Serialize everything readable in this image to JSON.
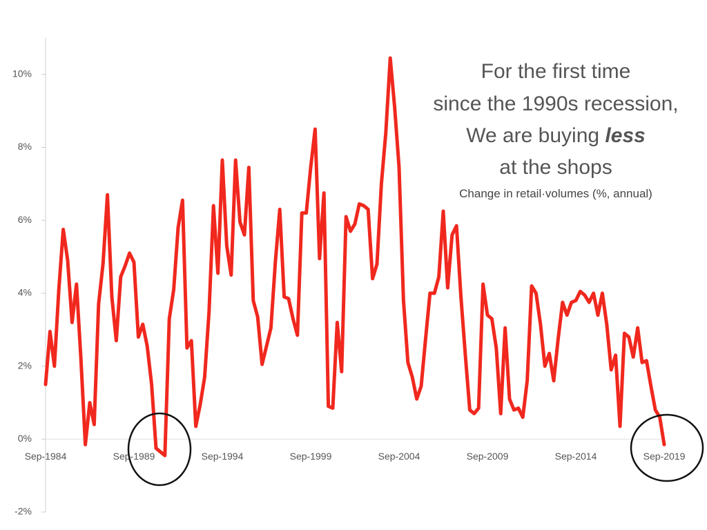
{
  "chart_data": {
    "type": "line",
    "annotation": [
      "For the first time",
      "since the 1990s recession,",
      "We are buying ",
      "less",
      "at the shops"
    ],
    "subtitle": "Change in retail·volumes (%, annual)",
    "categories": [
      "Sep-1984",
      null,
      null,
      null,
      null,
      null,
      null,
      null,
      null,
      null,
      null,
      null,
      null,
      null,
      null,
      null,
      null,
      null,
      null,
      null,
      "Sep-1989",
      null,
      null,
      null,
      null,
      null,
      null,
      null,
      null,
      null,
      null,
      null,
      null,
      null,
      null,
      null,
      null,
      null,
      null,
      null,
      "Sep-1994",
      null,
      null,
      null,
      null,
      null,
      null,
      null,
      null,
      null,
      null,
      null,
      null,
      null,
      null,
      null,
      null,
      null,
      null,
      null,
      "Sep-1999",
      null,
      null,
      null,
      null,
      null,
      null,
      null,
      null,
      null,
      null,
      null,
      null,
      null,
      null,
      null,
      null,
      null,
      null,
      null,
      "Sep-2004",
      null,
      null,
      null,
      null,
      null,
      null,
      null,
      null,
      null,
      null,
      null,
      null,
      null,
      null,
      null,
      null,
      null,
      null,
      null,
      "Sep-2009",
      null,
      null,
      null,
      null,
      null,
      null,
      null,
      null,
      null,
      null,
      null,
      null,
      null,
      null,
      null,
      null,
      null,
      null,
      null,
      "Sep-2014",
      null,
      null,
      null,
      null,
      null,
      null,
      null,
      null,
      null,
      null,
      null,
      null,
      null,
      null,
      null,
      null,
      null,
      null,
      null,
      "Sep-2019"
    ],
    "values": [
      1.5,
      2.95,
      2.0,
      4.1,
      5.75,
      4.9,
      3.2,
      4.25,
      2.2,
      -0.15,
      1.0,
      0.4,
      3.7,
      4.8,
      6.7,
      3.9,
      2.7,
      4.45,
      4.75,
      5.1,
      4.85,
      2.8,
      3.15,
      2.55,
      1.5,
      -0.25,
      -0.35,
      -0.45,
      3.3,
      4.1,
      5.8,
      6.55,
      2.5,
      2.7,
      0.35,
      0.95,
      1.7,
      3.5,
      6.4,
      4.55,
      7.65,
      5.3,
      4.5,
      7.65,
      5.95,
      5.6,
      7.45,
      3.8,
      3.35,
      2.05,
      2.55,
      3.05,
      4.85,
      6.3,
      3.9,
      3.85,
      3.3,
      2.85,
      6.2,
      6.2,
      7.45,
      8.5,
      4.95,
      6.75,
      0.9,
      0.85,
      3.2,
      1.85,
      6.1,
      5.7,
      5.9,
      6.45,
      6.4,
      6.3,
      4.4,
      4.8,
      7.0,
      8.4,
      10.45,
      9.1,
      7.45,
      3.8,
      2.1,
      1.7,
      1.1,
      1.45,
      2.75,
      4.0,
      4.0,
      4.45,
      6.25,
      4.15,
      5.6,
      5.85,
      3.9,
      2.3,
      0.8,
      0.7,
      0.85,
      4.25,
      3.4,
      3.3,
      2.5,
      0.7,
      3.05,
      1.1,
      0.8,
      0.85,
      0.6,
      1.6,
      4.2,
      4.0,
      3.15,
      2.0,
      2.35,
      1.6,
      2.75,
      3.75,
      3.4,
      3.75,
      3.8,
      4.05,
      3.95,
      3.75,
      4.0,
      3.4,
      4.0,
      3.15,
      1.9,
      2.3,
      0.35,
      2.9,
      2.8,
      2.25,
      3.05,
      2.1,
      2.15,
      1.45,
      0.8,
      0.6,
      -0.15
    ],
    "color": "#f0281e",
    "ylim": [
      -2,
      11
    ],
    "yticks": [
      {
        "value": -2,
        "label": "-2%"
      },
      {
        "value": 0,
        "label": "0%"
      },
      {
        "value": 2,
        "label": "2%"
      },
      {
        "value": 4,
        "label": "4%"
      },
      {
        "value": 6,
        "label": "6%"
      },
      {
        "value": 8,
        "label": "8%"
      },
      {
        "value": 10,
        "label": "10%"
      }
    ]
  }
}
